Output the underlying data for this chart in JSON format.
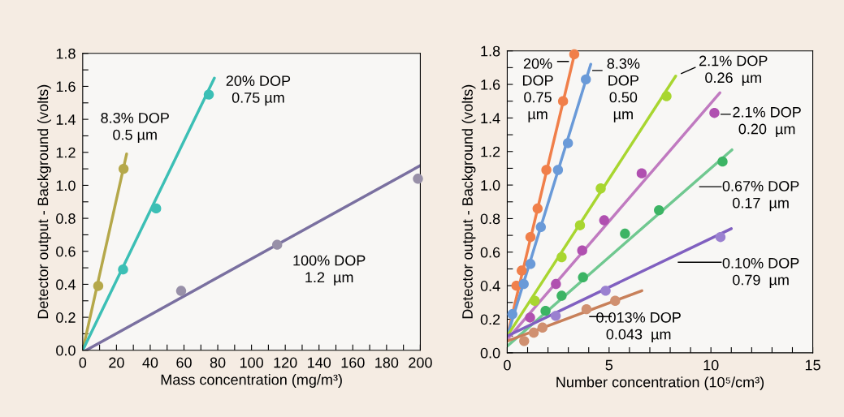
{
  "chart_data": [
    {
      "type": "scatter",
      "xlabel": "Mass concentration (mg/m³)",
      "ylabel": "Detector output - Background (volts)",
      "marker": "circle",
      "xlim": [
        0,
        200
      ],
      "ylim": [
        0.0,
        1.8
      ],
      "xticks": [
        0,
        {
          "value": 10,
          "label": null
        },
        20,
        {
          "value": 30,
          "label": null
        },
        40,
        {
          "value": 50,
          "label": null
        },
        60,
        {
          "value": 70,
          "label": null
        },
        80,
        {
          "value": 90,
          "label": null
        },
        100,
        {
          "value": 110,
          "label": null
        },
        120,
        {
          "value": 130,
          "label": null
        },
        140,
        {
          "value": 150,
          "label": null
        },
        160,
        {
          "value": 170,
          "label": null
        },
        180,
        {
          "value": 190,
          "label": null
        },
        200
      ],
      "yticks": [
        {
          "value": 0,
          "label": "0.0"
        },
        {
          "value": 0.1,
          "label": null
        },
        0.2,
        {
          "value": 0.3,
          "label": null
        },
        0.4,
        {
          "value": 0.5,
          "label": null
        },
        0.6,
        {
          "value": 0.7,
          "label": null
        },
        0.8,
        {
          "value": 0.9,
          "label": null
        },
        {
          "value": 1,
          "label": "1.0"
        },
        {
          "value": 1.1,
          "label": null
        },
        1.2,
        {
          "value": 1.3,
          "label": null
        },
        1.4,
        {
          "value": 1.5,
          "label": null
        },
        1.6,
        {
          "value": 1.7,
          "label": null
        },
        1.8
      ],
      "series": [
        {
          "type": "line",
          "marker": "none",
          "name": "8.3% DOP\n0.5 µm",
          "color": "#b5a84a",
          "x": [
            0,
            26
          ],
          "values": [
            0.0,
            1.19
          ]
        },
        {
          "color": "#b5a84a",
          "x": [
            9.2,
            24.2
          ],
          "values": [
            0.39,
            1.1
          ]
        },
        {
          "type": "line",
          "marker": "none",
          "name": "20% DOP\n0.75 µm",
          "color": "#3cbfb5",
          "x": [
            0,
            78
          ],
          "values": [
            0.0,
            1.65
          ]
        },
        {
          "color": "#3cbfb5",
          "x": [
            23.9,
            43.5,
            74.7
          ],
          "values": [
            0.49,
            0.86,
            1.55
          ]
        },
        {
          "type": "line",
          "marker": "none",
          "name": "100% DOP\n1.2  µm",
          "color": "#7a70a0",
          "x": [
            2,
            200
          ],
          "values": [
            0.0,
            1.12
          ]
        },
        {
          "color": "#9890a8",
          "x": [
            58.3,
            115.2,
            198.6
          ],
          "values": [
            0.36,
            0.64,
            1.04
          ]
        }
      ]
    },
    {
      "type": "scatter",
      "xlabel": "Number concentration (10⁵/cm³)",
      "ylabel": "Detector output - Background (volts)",
      "marker": "circle",
      "xlim": [
        0,
        15
      ],
      "ylim": [
        0.0,
        1.8
      ],
      "xticks": [
        0,
        {
          "value": 1,
          "label": null
        },
        {
          "value": 2,
          "label": null
        },
        {
          "value": 3,
          "label": null
        },
        {
          "value": 4,
          "label": null
        },
        5,
        {
          "value": 6,
          "label": null
        },
        {
          "value": 7,
          "label": null
        },
        {
          "value": 8,
          "label": null
        },
        {
          "value": 9,
          "label": null
        },
        10,
        {
          "value": 11,
          "label": null
        },
        {
          "value": 12,
          "label": null
        },
        {
          "value": 13,
          "label": null
        },
        {
          "value": 14,
          "label": null
        },
        15
      ],
      "yticks": [
        {
          "value": 0,
          "label": "0.0"
        },
        {
          "value": 0.1,
          "label": null
        },
        0.2,
        {
          "value": 0.3,
          "label": null
        },
        0.4,
        {
          "value": 0.5,
          "label": null
        },
        0.6,
        {
          "value": 0.7,
          "label": null
        },
        0.8,
        {
          "value": 0.9,
          "label": null
        },
        {
          "value": 1,
          "label": "1.0"
        },
        {
          "value": 1.1,
          "label": null
        },
        1.2,
        {
          "value": 1.3,
          "label": null
        },
        1.4,
        {
          "value": 1.5,
          "label": null
        },
        1.6,
        {
          "value": 1.7,
          "label": null
        },
        1.8
      ],
      "series": [
        {
          "type": "line",
          "marker": "none",
          "name": "20%\nDOP\n0.75\nµm",
          "color": "#f07f4a",
          "x": [
            0,
            3.32
          ],
          "values": [
            0.1,
            1.79
          ]
        },
        {
          "color": "#f07f4a",
          "x": [
            0.45,
            0.71,
            1.14,
            1.49,
            1.92,
            2.74,
            3.29
          ],
          "values": [
            0.4,
            0.49,
            0.69,
            0.86,
            1.09,
            1.5,
            1.78
          ]
        },
        {
          "type": "line",
          "marker": "none",
          "name": "8.3%\nDOP\n0.50\nµm",
          "color": "#6a9ad8",
          "x": [
            0,
            4.1
          ],
          "values": [
            0.1,
            1.72
          ]
        },
        {
          "color": "#6a9ad8",
          "x": [
            0.25,
            0.81,
            1.14,
            1.65,
            2.49,
            2.98,
            3.86
          ],
          "values": [
            0.23,
            0.41,
            0.53,
            0.75,
            1.09,
            1.25,
            1.63
          ]
        },
        {
          "type": "line",
          "marker": "none",
          "name": "2.1% DOP\n0.26  µm",
          "color": "#a8d630",
          "x": [
            0,
            8.27
          ],
          "values": [
            0.1,
            1.65
          ]
        },
        {
          "color": "#a8d630",
          "x": [
            1.35,
            2.67,
            3.57,
            4.59,
            7.82
          ],
          "values": [
            0.31,
            0.57,
            0.76,
            0.98,
            1.53
          ]
        },
        {
          "type": "line",
          "marker": "none",
          "name": "2.1% DOP\n0.20  µm",
          "color": "#c07ac0",
          "x": [
            0,
            10.44
          ],
          "values": [
            0.08,
            1.55
          ]
        },
        {
          "color": "#b050b0",
          "x": [
            1.12,
            2.39,
            3.68,
            4.76,
            6.6,
            10.17
          ],
          "values": [
            0.21,
            0.41,
            0.61,
            0.79,
            1.07,
            1.43
          ]
        },
        {
          "type": "line",
          "marker": "none",
          "name": "0.67% DOP\n0.17  µm",
          "color": "#70c890",
          "x": [
            0,
            11.03
          ],
          "values": [
            0.04,
            1.21
          ]
        },
        {
          "color": "#3cb464",
          "x": [
            1.88,
            2.67,
            3.72,
            5.78,
            7.45,
            10.57
          ],
          "values": [
            0.25,
            0.34,
            0.45,
            0.71,
            0.85,
            1.14
          ]
        },
        {
          "type": "line",
          "marker": "none",
          "name": "0.10% DOP\n0.79  µm",
          "color": "#8060c0",
          "x": [
            0,
            11.0
          ],
          "values": [
            0.1,
            0.74
          ]
        },
        {
          "color": "#9a80d0",
          "x": [
            2.38,
            4.83,
            10.47
          ],
          "values": [
            0.22,
            0.37,
            0.69
          ]
        },
        {
          "type": "line",
          "marker": "none",
          "name": "0.013% DOP\n0.043  µm",
          "color": "#c8805a",
          "x": [
            0,
            6.61
          ],
          "values": [
            0.07,
            0.37
          ]
        },
        {
          "color": "#d09070",
          "x": [
            0.83,
            1.3,
            1.73,
            3.89,
            5.3
          ],
          "values": [
            0.07,
            0.12,
            0.15,
            0.26,
            0.31
          ]
        }
      ]
    }
  ]
}
